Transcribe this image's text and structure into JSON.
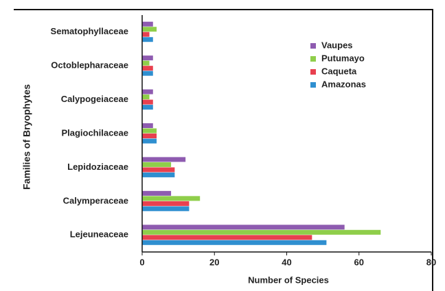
{
  "chart_data": {
    "type": "hbar",
    "xlabel": "Number of Species",
    "ylabel": "Families of Bryophytes",
    "categories": [
      "Sematophyllaceae",
      "Octoblepharaceae",
      "Calypogeiaceae",
      "Plagiochilaceae",
      "Lepidoziaceae",
      "Calymperaceae",
      "Lejeuneaceae"
    ],
    "series": [
      {
        "name": "Vaupes",
        "color": "#8e5bb0",
        "values": [
          3,
          3,
          3,
          3,
          12,
          8,
          56
        ]
      },
      {
        "name": "Putumayo",
        "color": "#8fce4a",
        "values": [
          4,
          2,
          2,
          4,
          8,
          16,
          66
        ]
      },
      {
        "name": "Caqueta",
        "color": "#e8404f",
        "values": [
          2,
          3,
          3,
          4,
          9,
          13,
          47
        ]
      },
      {
        "name": "Amazonas",
        "color": "#2f8fd0",
        "values": [
          3,
          3,
          3,
          4,
          9,
          13,
          51
        ]
      }
    ],
    "xlim": [
      0,
      80
    ],
    "xticks": [
      0,
      20,
      40,
      60,
      80
    ],
    "legend": "upper right"
  }
}
